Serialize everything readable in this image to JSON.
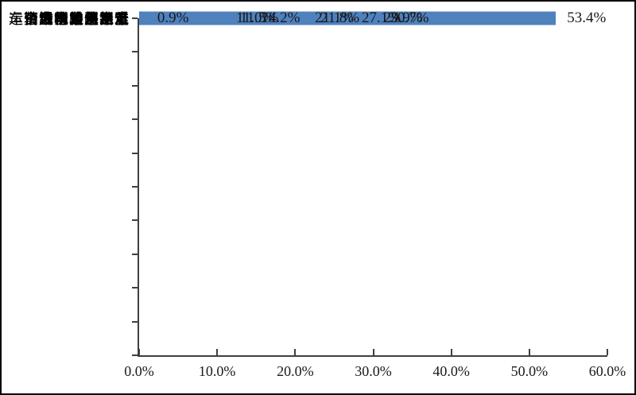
{
  "chart_data": {
    "type": "bar",
    "orientation": "horizontal",
    "title": "",
    "xlabel": "",
    "ylabel": "",
    "categories": [
      "运营成本过快上涨",
      "市场需求不足",
      "资金不足融资难",
      "税费负担重",
      "市场价格水平低",
      "缺人才用工难",
      "车辆通行难停靠难",
      "用地难用地贵",
      "企业创新难",
      "企业市场退出难"
    ],
    "values": [
      53.4,
      30.7,
      29.9,
      27.1,
      21.8,
      21.1,
      14.2,
      11.5,
      11.0,
      0.9
    ],
    "value_labels": [
      "53.4%",
      "30.7%",
      "29.9%",
      "27.1%",
      "21.8%",
      "21.1%",
      "14.2%",
      "11.5%",
      "11.0%",
      "0.9%"
    ],
    "x_tick_labels": [
      "0.0%",
      "10.0%",
      "20.0%",
      "30.0%",
      "40.0%",
      "50.0%",
      "60.0%"
    ],
    "xlim": [
      0,
      60
    ],
    "grid": false,
    "legend": false,
    "bar_color": "#4F81BD",
    "axis_color": "#404040",
    "background_color": "#FFFFFF",
    "border_color": "#000000"
  }
}
